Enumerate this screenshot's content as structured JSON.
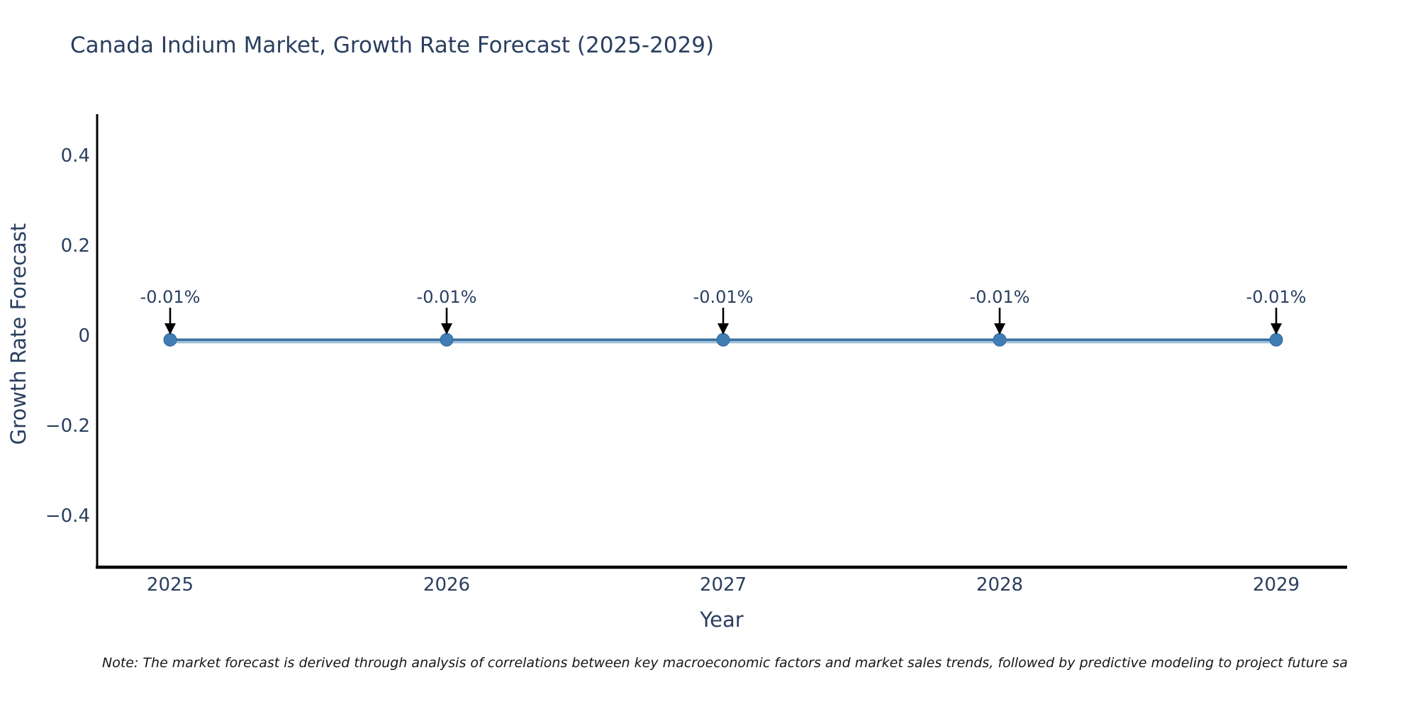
{
  "chart_data": {
    "type": "line",
    "title": "Canada Indium Market, Growth Rate Forecast (2025-2029)",
    "xlabel": "Year",
    "ylabel": "Growth Rate Forecast",
    "x": [
      2025,
      2026,
      2027,
      2028,
      2029
    ],
    "xtick_labels": [
      "2025",
      "2026",
      "2027",
      "2028",
      "2029"
    ],
    "series": [
      {
        "name": "Growth Rate Forecast",
        "values": [
          -0.01,
          -0.01,
          -0.01,
          -0.01,
          -0.01
        ],
        "point_labels": [
          "-0.01%",
          "-0.01%",
          "-0.01%",
          "-0.01%",
          "-0.01%"
        ]
      }
    ],
    "yticks": [
      0.4,
      0.2,
      0,
      -0.2,
      -0.4
    ],
    "ytick_labels": [
      "0.4",
      "0.2",
      "0",
      "−0.2",
      "−0.4"
    ],
    "ylim": [
      -0.515,
      0.491
    ],
    "grid": false,
    "legend": "none",
    "annotations_have_arrows": true
  },
  "note": {
    "text": "Note: The market forecast is derived through analysis of correlations between key macroeconomic factors and market sales trends, followed by predictive modeling to project future sa"
  },
  "colors": {
    "line_halo": "#7fa9cd",
    "line_core": "#3a6f9f",
    "marker_fill": "#3f7db4",
    "marker_stroke": "#36699a",
    "axis_line": "#000000",
    "text": "#2a3f5f",
    "arrow": "#000000",
    "background": "#ffffff"
  }
}
